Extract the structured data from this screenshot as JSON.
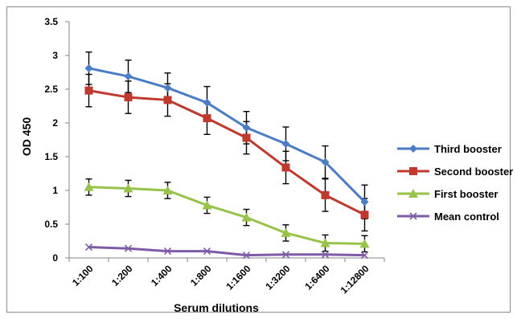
{
  "chart_data": {
    "type": "line",
    "title": "",
    "xlabel": "Serum dilutions",
    "ylabel": "OD 450",
    "ylim": [
      0,
      3.5
    ],
    "yticks": [
      "0",
      "0.5",
      "1",
      "1.5",
      "2",
      "2.5",
      "3",
      "3.5"
    ],
    "categories": [
      "1:100",
      "1:200",
      "1:400",
      "1:800",
      "1:1600",
      "1:3200",
      "1:6400",
      "1:12800"
    ],
    "grid": false,
    "legend_position": "right",
    "error_bars": true,
    "series": [
      {
        "name": "Third booster",
        "color": "#4a7dc4",
        "marker": "diamond",
        "values": [
          2.81,
          2.69,
          2.52,
          2.3,
          1.93,
          1.69,
          1.42,
          0.83
        ],
        "errors": [
          0.24,
          0.24,
          0.22,
          0.24,
          0.24,
          0.25,
          0.24,
          0.25
        ]
      },
      {
        "name": "Second booster",
        "color": "#c0392f",
        "marker": "square",
        "values": [
          2.48,
          2.38,
          2.34,
          2.07,
          1.78,
          1.34,
          0.93,
          0.64
        ],
        "errors": [
          0.24,
          0.24,
          0.24,
          0.24,
          0.24,
          0.24,
          0.24,
          0.24
        ]
      },
      {
        "name": "First booster",
        "color": "#97c34a",
        "marker": "triangle",
        "values": [
          1.05,
          1.03,
          1.0,
          0.78,
          0.6,
          0.37,
          0.22,
          0.21
        ],
        "errors": [
          0.12,
          0.12,
          0.12,
          0.12,
          0.12,
          0.12,
          0.12,
          0.12
        ]
      },
      {
        "name": "Mean control",
        "color": "#7e5ba6",
        "marker": "x",
        "values": [
          0.16,
          0.14,
          0.1,
          0.1,
          0.04,
          0.05,
          0.05,
          0.04
        ],
        "errors": [
          0.0,
          0.0,
          0.0,
          0.0,
          0.0,
          0.0,
          0.0,
          0.0
        ]
      }
    ]
  }
}
